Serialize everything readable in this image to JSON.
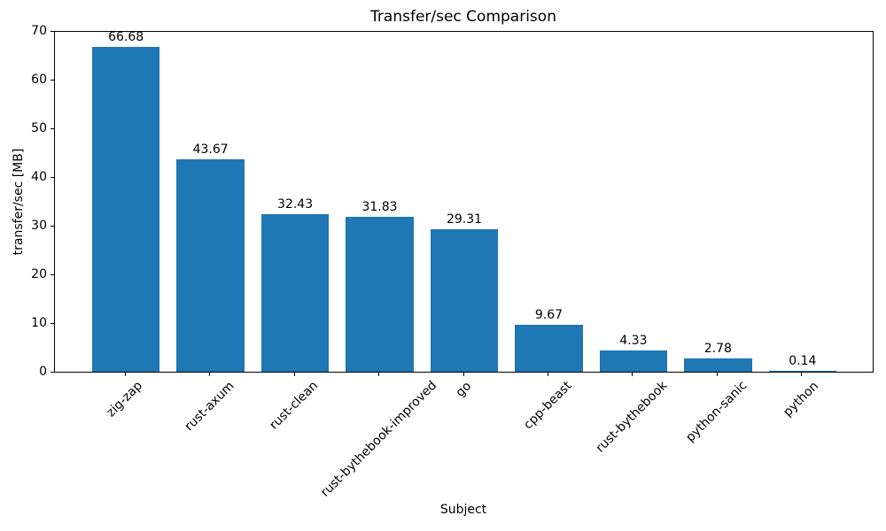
{
  "chart_data": {
    "type": "bar",
    "title": "Transfer/sec Comparison",
    "xlabel": "Subject",
    "ylabel": "transfer/sec [MB]",
    "categories": [
      "zig-zap",
      "rust-axum",
      "rust-clean",
      "rust-bythebook-improved",
      "go",
      "cpp-beast",
      "rust-bythebook",
      "python-sanic",
      "python"
    ],
    "values": [
      66.68,
      43.67,
      32.43,
      31.83,
      29.31,
      9.67,
      4.33,
      2.78,
      0.14
    ],
    "bar_value_labels": [
      "66.68",
      "43.67",
      "32.43",
      "31.83",
      "29.31",
      "9.67",
      "4.33",
      "2.78",
      "0.14"
    ],
    "ylim": [
      0,
      70
    ],
    "yticks": [
      0,
      10,
      20,
      30,
      40,
      50,
      60,
      70
    ],
    "bar_color": "#1f77b4",
    "axis_color": "#000000",
    "background_color": "#ffffff",
    "bar_width_fraction": 0.8,
    "x_margin_fraction": 0.05,
    "x_tick_rotation_deg": 45,
    "grid": false,
    "legend": "none"
  }
}
